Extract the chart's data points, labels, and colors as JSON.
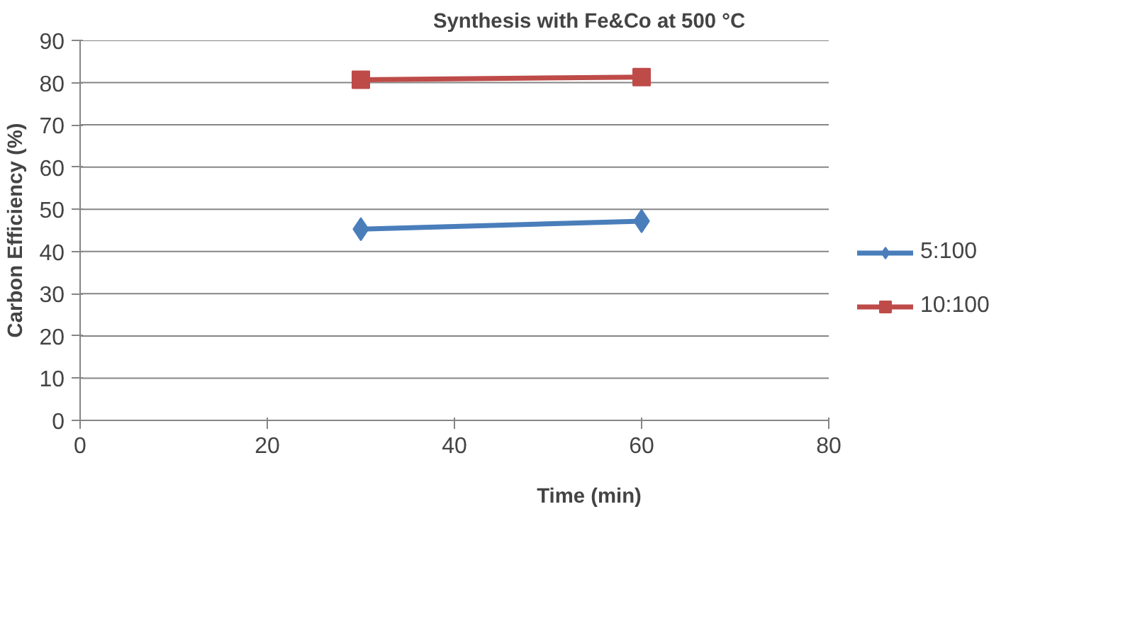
{
  "chart_data": {
    "type": "line",
    "title": "Synthesis with Fe&Co at 500 °C",
    "xlabel": "Time (min)",
    "ylabel": "Carbon Efficiency (%)",
    "x": [
      30,
      60
    ],
    "xlim": [
      0,
      80
    ],
    "xticks": [
      0,
      20,
      40,
      60,
      80
    ],
    "ylim": [
      0,
      90
    ],
    "yticks": [
      0,
      10,
      20,
      30,
      40,
      50,
      60,
      70,
      80,
      90
    ],
    "grid": "y",
    "legend": "right",
    "line_style": "solid",
    "series": [
      {
        "name": "5:100",
        "color": "#4a7ebb",
        "marker": "diamond",
        "values": [
          45.3,
          47.2
        ]
      },
      {
        "name": "10:100",
        "color": "#be4b48",
        "marker": "square",
        "values": [
          80.7,
          81.3
        ]
      }
    ]
  }
}
